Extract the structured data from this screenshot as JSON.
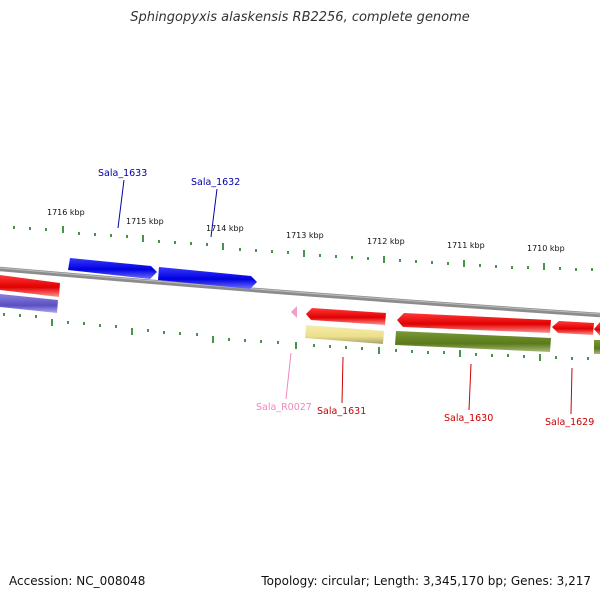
{
  "title": "Sphingopyxis alaskensis RB2256, complete genome",
  "footer": {
    "accession": "Accession: NC_008048",
    "topology": "Topology: circular; Length: 3,345,170 bp; Genes: 3,217"
  },
  "colors": {
    "backbone": "#888888",
    "tick": "#1a7a1a",
    "forward_gene": "#0000ee",
    "reverse_gene": "#ee0000",
    "reverse_cds_fill": "#6b8e23",
    "forward_cds_fill": "#6a5acd",
    "pseudo_fill": "#f0e68c",
    "rna": "#ee82ee"
  },
  "scale_labels": [
    "1716 kbp",
    "1715 kbp",
    "1714 kbp",
    "1713 kbp",
    "1712 kbp",
    "1711 kbp",
    "1710 kbp"
  ],
  "genes": [
    {
      "name": "Sala_1633",
      "strand": "forward",
      "color": "#0000aa"
    },
    {
      "name": "Sala_1632",
      "strand": "forward",
      "color": "#0000aa"
    },
    {
      "name": "Sala_R0027",
      "strand": "reverse",
      "color": "#ee88bb"
    },
    {
      "name": "Sala_1631",
      "strand": "reverse",
      "color": "#cc0000"
    },
    {
      "name": "Sala_1630",
      "strand": "reverse",
      "color": "#cc0000"
    },
    {
      "name": "Sala_1629",
      "strand": "reverse",
      "color": "#cc0000"
    }
  ]
}
